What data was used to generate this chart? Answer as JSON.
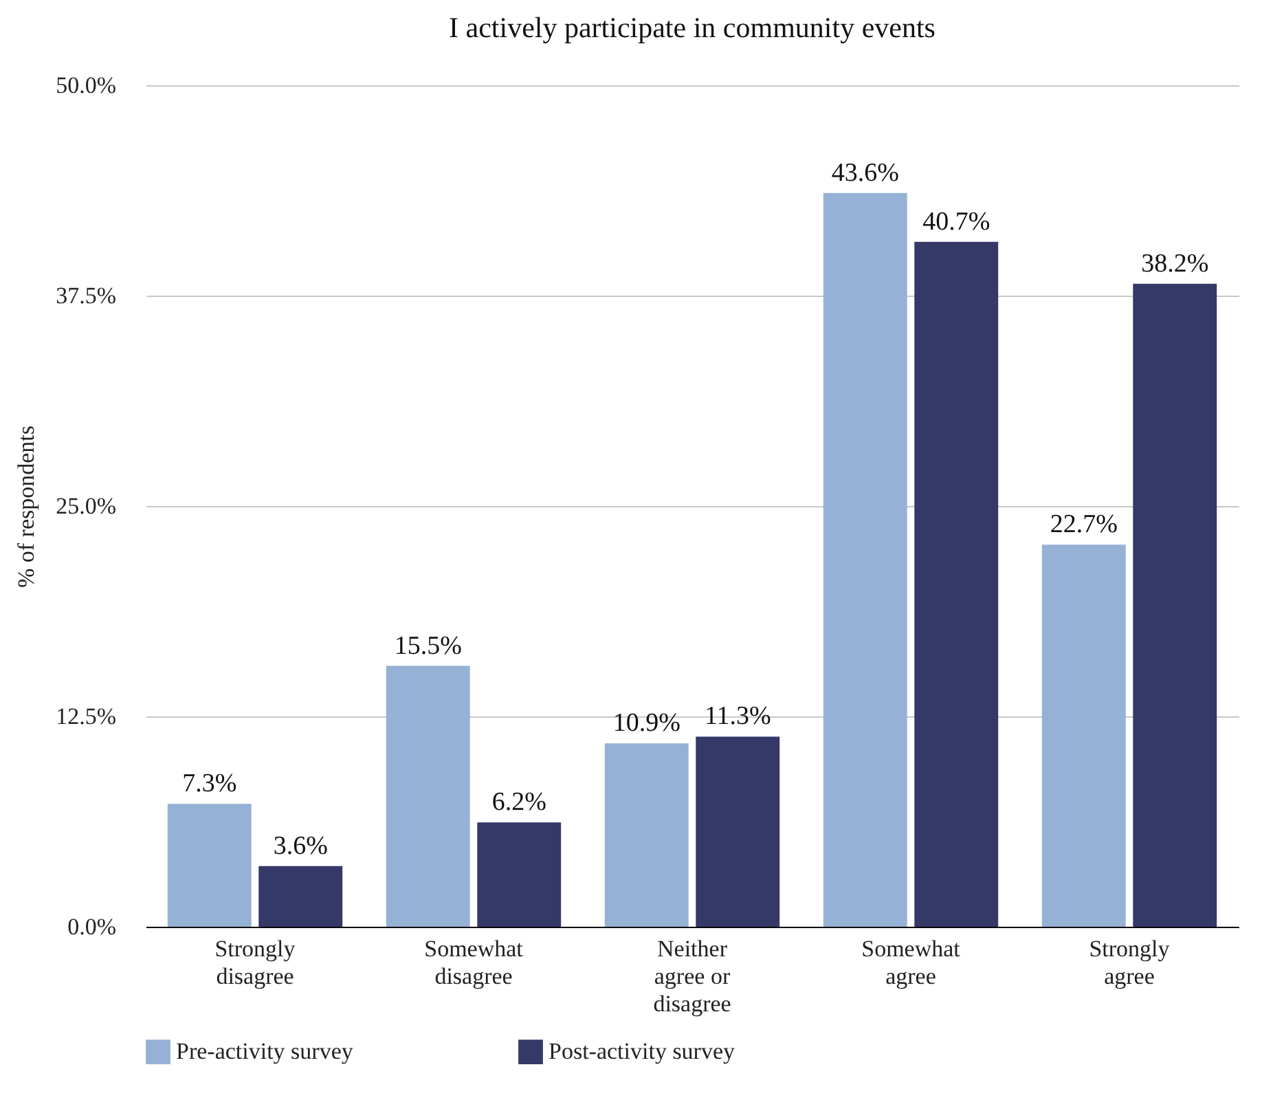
{
  "chart_data": {
    "type": "bar",
    "title": "I actively participate in community events",
    "ylabel": "% of respondents",
    "categories": [
      "Strongly disagree",
      "Somewhat disagree",
      "Neither agree or disagree",
      "Somewhat agree",
      "Strongly agree"
    ],
    "series": [
      {
        "name": "Pre-activity survey",
        "color": "#95b1d5",
        "values": [
          7.3,
          15.5,
          10.9,
          43.6,
          22.7
        ],
        "value_labels": [
          "7.3%",
          "15.5%",
          "10.9%",
          "43.6%",
          "22.7%"
        ]
      },
      {
        "name": "Post-activity survey",
        "color": "#343968",
        "values": [
          3.6,
          6.2,
          11.3,
          40.7,
          38.2
        ],
        "value_labels": [
          "3.6%",
          "6.2%",
          "11.3%",
          "40.7%",
          "38.2%"
        ]
      }
    ],
    "ylim": [
      0,
      50
    ],
    "yticks": [
      {
        "value": 0,
        "label": "0.0%"
      },
      {
        "value": 12.5,
        "label": "12.5%"
      },
      {
        "value": 25,
        "label": "25.0%"
      },
      {
        "value": 37.5,
        "label": "37.5%"
      },
      {
        "value": 50,
        "label": "50.0%"
      }
    ],
    "grid": "y",
    "legend": "bottom"
  }
}
